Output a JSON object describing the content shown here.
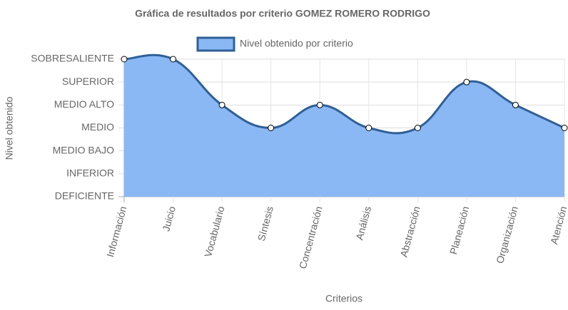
{
  "chart_data": {
    "type": "line",
    "title": "Gráfica de resultados por criterio  GOMEZ ROMERO RODRIGO",
    "x_label": "Criterios",
    "y_label": "Nivel obtenido",
    "categories": [
      "Información",
      "Juicio",
      "Vocabulario",
      "Síntesis",
      "Concentración",
      "Análisis",
      "Abstracción",
      "Planeación",
      "Organización",
      "Atención"
    ],
    "series": [
      {
        "name": "Nivel obtenido por criterio",
        "color": "#2f5f96",
        "fill": "#8ab8f5",
        "values": [
          6,
          6,
          4,
          3,
          4,
          3,
          3,
          5,
          4,
          3
        ]
      }
    ],
    "ylim": [
      0,
      6
    ],
    "yticks": [
      {
        "value": 0,
        "label": "DEFICIENTE"
      },
      {
        "value": 1,
        "label": "INFERIOR"
      },
      {
        "value": 2,
        "label": "MEDIO BAJO"
      },
      {
        "value": 3,
        "label": "MEDIO"
      },
      {
        "value": 4,
        "label": "MEDIO ALTO"
      },
      {
        "value": 5,
        "label": "SUPERIOR"
      },
      {
        "value": 6,
        "label": "SOBRESALIENTE"
      }
    ],
    "grid": true,
    "legend": "top"
  }
}
